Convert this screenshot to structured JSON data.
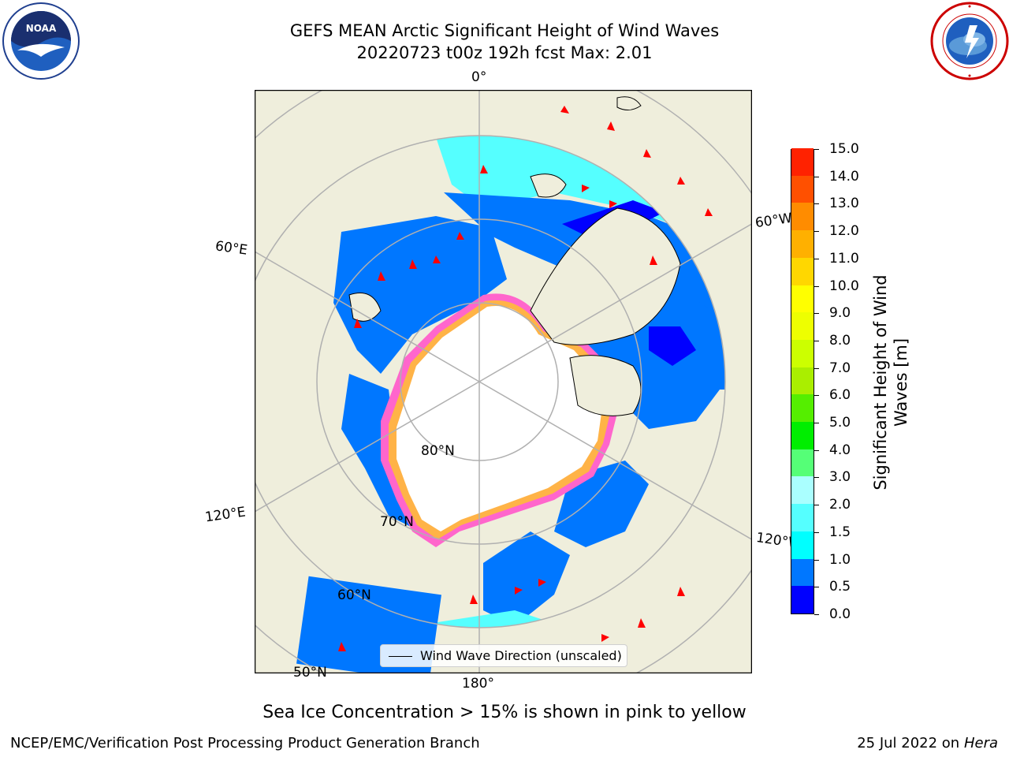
{
  "title": {
    "line1": "GEFS MEAN Arctic Significant Height of Wind Waves",
    "line2": "20220723 t00z 192h fcst   Max: 2.01"
  },
  "logos": {
    "left": "noaa-logo",
    "right": "nws-logo"
  },
  "map": {
    "longitude_labels": {
      "top": "0°",
      "right": "60°W",
      "left_upper": "60°E",
      "left_lower": "120°E",
      "right_lower": "120°W",
      "bottom": "180°"
    },
    "latitude_labels": {
      "lat80": "80°N",
      "lat70": "70°N",
      "lat60": "60°N",
      "lat50": "50°N"
    },
    "legend_label": "Wind Wave Direction (unscaled)",
    "colors": {
      "land": "#efeedc",
      "ice": "#ffffff",
      "ice_edge": "#ff66cc",
      "ice_edge_light": "#ffb347",
      "wave_low": "#0000ff",
      "wave_mid": "#0077ff",
      "wave_high": "#00ffff",
      "wave_top": "#55ffff",
      "arrow": "#ff0000",
      "grid": "#b0b0b0"
    }
  },
  "colorbar": {
    "title_line1": "Significant Height of Wind",
    "title_line2": "Waves [m]",
    "ticks": [
      "0.0",
      "0.5",
      "1.0",
      "1.5",
      "2.0",
      "3.0",
      "4.0",
      "5.0",
      "6.0",
      "7.0",
      "8.0",
      "9.0",
      "10.0",
      "11.0",
      "12.0",
      "13.0",
      "14.0",
      "15.0"
    ],
    "colors": [
      "#0000ff",
      "#0077ff",
      "#00ffff",
      "#55ffff",
      "#aaffff",
      "#55ff77",
      "#00ee00",
      "#55ee00",
      "#aaee00",
      "#ccff00",
      "#eeff00",
      "#ffff00",
      "#ffd700",
      "#ffb000",
      "#ff8c00",
      "#ff5000",
      "#ff2200"
    ]
  },
  "caption": "Sea Ice Concentration > 15% is shown in pink to yellow",
  "footer": {
    "left": "NCEP/EMC/Verification Post Processing Product Generation Branch",
    "right_date": "25 Jul 2022 on ",
    "right_host": "Hera"
  }
}
